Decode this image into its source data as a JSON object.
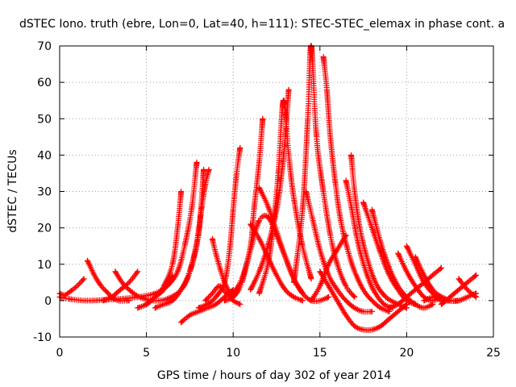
{
  "chart_data": {
    "type": "scatter",
    "title": "dSTEC Iono. truth (ebre, Lon=0, Lat=40, h=111): STEC-STEC_elemax in phase cont. a",
    "xlabel": "GPS time / hours of day 302 of year 2014",
    "ylabel": "dSTEC  / TECUs",
    "xlim": [
      0,
      25
    ],
    "ylim": [
      -10,
      70
    ],
    "x_ticks": [
      "0",
      "5",
      "10",
      "15",
      "20",
      "25"
    ],
    "y_ticks": [
      "-10",
      "0",
      "10",
      "20",
      "30",
      "40",
      "50",
      "60",
      "70"
    ],
    "grid": true,
    "marker": "+",
    "color": "#ff0000",
    "series": [
      {
        "x": [
          0.0,
          0.3,
          0.6,
          1.0,
          1.4
        ],
        "y": [
          2,
          1.5,
          2.5,
          4,
          6
        ]
      },
      {
        "x": [
          0.0,
          0.5,
          1.5,
          2.5,
          3.5,
          4.5,
          5.5,
          6.2,
          6.8,
          7.2,
          7.6,
          7.9
        ],
        "y": [
          1,
          0.5,
          0,
          0.2,
          0.5,
          1,
          2,
          4,
          8,
          15,
          25,
          38
        ]
      },
      {
        "x": [
          1.6,
          2.0,
          2.4,
          2.8,
          3.0,
          3.4,
          4.0
        ],
        "y": [
          11,
          7,
          4,
          2,
          1,
          0,
          0
        ]
      },
      {
        "x": [
          3.2,
          3.6,
          4.0,
          4.6,
          5.4,
          6.2,
          7.0,
          7.5,
          8.0,
          8.3
        ],
        "y": [
          8,
          5,
          3,
          1,
          0,
          0.5,
          3,
          8,
          18,
          36
        ]
      },
      {
        "x": [
          2.5,
          3.0,
          3.5,
          4.0,
          4.5
        ],
        "y": [
          0,
          1,
          3,
          5,
          8
        ]
      },
      {
        "x": [
          4.5,
          5.0,
          5.5,
          6.0,
          6.5,
          6.8,
          7.0
        ],
        "y": [
          -2,
          -1,
          1,
          4,
          10,
          20,
          30
        ]
      },
      {
        "x": [
          5.5,
          6.0,
          6.5,
          7.0,
          7.5,
          7.9,
          8.2,
          8.4,
          8.6
        ],
        "y": [
          -2,
          -1,
          0,
          3,
          8,
          16,
          26,
          32,
          36
        ]
      },
      {
        "x": [
          5.0,
          5.5,
          6.0,
          6.5
        ],
        "y": [
          -1,
          1,
          3,
          7
        ]
      },
      {
        "x": [
          7.0,
          7.5,
          8.0,
          8.5,
          9.0,
          9.5,
          10.0
        ],
        "y": [
          -6,
          -4,
          -3,
          -2,
          -1,
          1,
          3
        ]
      },
      {
        "x": [
          8.8,
          9.0,
          9.3,
          9.6,
          10.0
        ],
        "y": [
          17,
          13,
          8,
          4,
          1
        ]
      },
      {
        "x": [
          8.4,
          8.8,
          9.2,
          9.6,
          10.0,
          10.4
        ],
        "y": [
          0,
          2,
          4,
          2,
          0,
          -1
        ]
      },
      {
        "x": [
          8.0,
          8.5,
          9.0,
          9.5,
          9.8,
          10.0,
          10.2,
          10.4
        ],
        "y": [
          -2,
          -1,
          1,
          5,
          14,
          25,
          35,
          42
        ]
      },
      {
        "x": [
          9.5,
          10.0,
          10.5,
          11.0,
          11.2,
          11.5,
          11.7
        ],
        "y": [
          0,
          1,
          5,
          15,
          25,
          38,
          50
        ]
      },
      {
        "x": [
          10.0,
          10.5,
          11.0,
          11.5,
          12.0,
          12.5,
          13.0,
          13.5,
          14.0
        ],
        "y": [
          2,
          6,
          14,
          22,
          23,
          18,
          12,
          6,
          2
        ]
      },
      {
        "x": [
          11.5,
          12.0,
          12.5,
          13.0,
          13.5,
          14.0,
          14.5,
          15.0,
          15.5
        ],
        "y": [
          31,
          26,
          19,
          12,
          6,
          2,
          0,
          0,
          1
        ]
      },
      {
        "x": [
          11.0,
          11.5,
          12.0,
          12.5,
          13.0,
          13.5,
          14.0
        ],
        "y": [
          21,
          17,
          12,
          7,
          3,
          1,
          0
        ]
      },
      {
        "x": [
          11.0,
          11.5,
          12.0,
          12.5,
          12.8,
          13.0,
          13.2
        ],
        "y": [
          3,
          8,
          15,
          25,
          35,
          45,
          58
        ]
      },
      {
        "x": [
          11.5,
          12.0,
          12.3,
          12.6,
          12.9,
          13.2,
          13.5,
          14.0,
          14.5
        ],
        "y": [
          2,
          10,
          20,
          35,
          55,
          40,
          28,
          15,
          6
        ]
      },
      {
        "x": [
          14.2,
          14.6,
          15.0,
          15.5,
          16.0,
          16.5,
          17.0,
          17.5,
          18.0
        ],
        "y": [
          30,
          22,
          14,
          7,
          3,
          0,
          -2,
          -3,
          -3
        ]
      },
      {
        "x": [
          13.5,
          14.0,
          14.3,
          14.5,
          14.8,
          15.2,
          15.6,
          16.0,
          16.5,
          17.0
        ],
        "y": [
          5,
          25,
          50,
          70,
          45,
          30,
          18,
          10,
          4,
          1
        ]
      },
      {
        "x": [
          15.2,
          15.4,
          15.6,
          15.9,
          16.2,
          16.6,
          17.0,
          17.5,
          18.0,
          18.5,
          19.0
        ],
        "y": [
          67,
          58,
          45,
          32,
          22,
          14,
          8,
          3,
          0,
          -2,
          -3
        ]
      },
      {
        "x": [
          15.0,
          15.5,
          16.0,
          16.5,
          17.0,
          17.5,
          18.0,
          18.5,
          19.0,
          19.5,
          20.0
        ],
        "y": [
          8,
          4,
          0,
          -4,
          -7,
          -8,
          -8,
          -7,
          -5,
          -3,
          -1
        ]
      },
      {
        "x": [
          14.5,
          15.0,
          15.5,
          16.0,
          16.5
        ],
        "y": [
          0,
          4,
          10,
          14,
          18
        ]
      },
      {
        "x": [
          16.5,
          16.8,
          17.1,
          17.4,
          17.8,
          18.2,
          18.7,
          19.2
        ],
        "y": [
          33,
          26,
          18,
          12,
          6,
          2,
          -1,
          -2
        ]
      },
      {
        "x": [
          16.8,
          17.0,
          17.3,
          17.7,
          18.2,
          18.8,
          19.5,
          20.0
        ],
        "y": [
          40,
          30,
          20,
          12,
          5,
          1,
          -1,
          -2
        ]
      },
      {
        "x": [
          17.5,
          18.0,
          18.5,
          19.0,
          19.5,
          20.0,
          20.5
        ],
        "y": [
          27,
          20,
          13,
          7,
          3,
          0,
          -1
        ]
      },
      {
        "x": [
          18.0,
          18.5,
          19.0,
          19.5,
          20.0,
          20.5,
          21.0,
          21.5
        ],
        "y": [
          25,
          16,
          9,
          4,
          1,
          -1,
          -2,
          -1
        ]
      },
      {
        "x": [
          19.5,
          20.0,
          20.5,
          21.0,
          21.5,
          22.0
        ],
        "y": [
          13,
          8,
          4,
          1,
          0,
          1
        ]
      },
      {
        "x": [
          20.0,
          20.5,
          21.0,
          21.5,
          22.0,
          22.5
        ],
        "y": [
          15,
          10,
          5,
          2,
          0,
          0
        ]
      },
      {
        "x": [
          20.5,
          21.0,
          21.5,
          22.0,
          22.5,
          23.0
        ],
        "y": [
          12,
          7,
          3,
          1,
          0,
          0
        ]
      },
      {
        "x": [
          19.0,
          19.5,
          20.0,
          20.5,
          21.0,
          21.5,
          22.0
        ],
        "y": [
          -2,
          -1,
          1,
          3,
          5,
          7,
          9
        ]
      },
      {
        "x": [
          21.0,
          21.5,
          22.0,
          22.5,
          23.0,
          23.5,
          24.0
        ],
        "y": [
          0,
          1,
          1,
          0,
          0,
          1,
          2
        ]
      },
      {
        "x": [
          22.0,
          22.5,
          23.0,
          23.5,
          24.0
        ],
        "y": [
          -1,
          1,
          3,
          5,
          7
        ]
      },
      {
        "x": [
          23.0,
          23.5,
          24.0
        ],
        "y": [
          6,
          3,
          1
        ]
      }
    ]
  }
}
